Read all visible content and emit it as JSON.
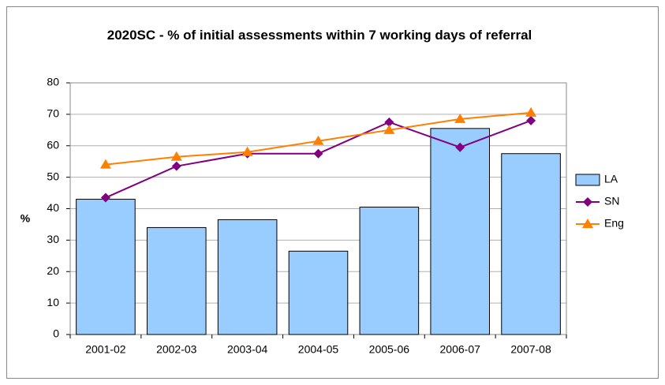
{
  "chart_data": {
    "type": "bar",
    "title": "2020SC - % of initial assessments within 7 working days of referral",
    "y_label": "%",
    "categories": [
      "2001-02",
      "2002-03",
      "2003-04",
      "2004-05",
      "2005-06",
      "2006-07",
      "2007-08"
    ],
    "series": [
      {
        "name": "LA",
        "type": "bar",
        "color": "#99ccff",
        "values": [
          43,
          34,
          36.5,
          26.5,
          40.5,
          65.5,
          57.5
        ]
      },
      {
        "name": "SN",
        "type": "line",
        "marker": "diamond",
        "color": "#800080",
        "values": [
          43.5,
          53.5,
          57.5,
          57.5,
          67.5,
          59.5,
          68
        ]
      },
      {
        "name": "Eng",
        "type": "line",
        "marker": "triangle",
        "color": "#ff8000",
        "values": [
          54,
          56.5,
          58,
          61.5,
          65,
          68.5,
          70.5
        ]
      }
    ],
    "ylim": [
      0,
      80
    ],
    "yticks": [
      0,
      10,
      20,
      30,
      40,
      50,
      60,
      70,
      80
    ],
    "grid": true,
    "legend": "right"
  }
}
